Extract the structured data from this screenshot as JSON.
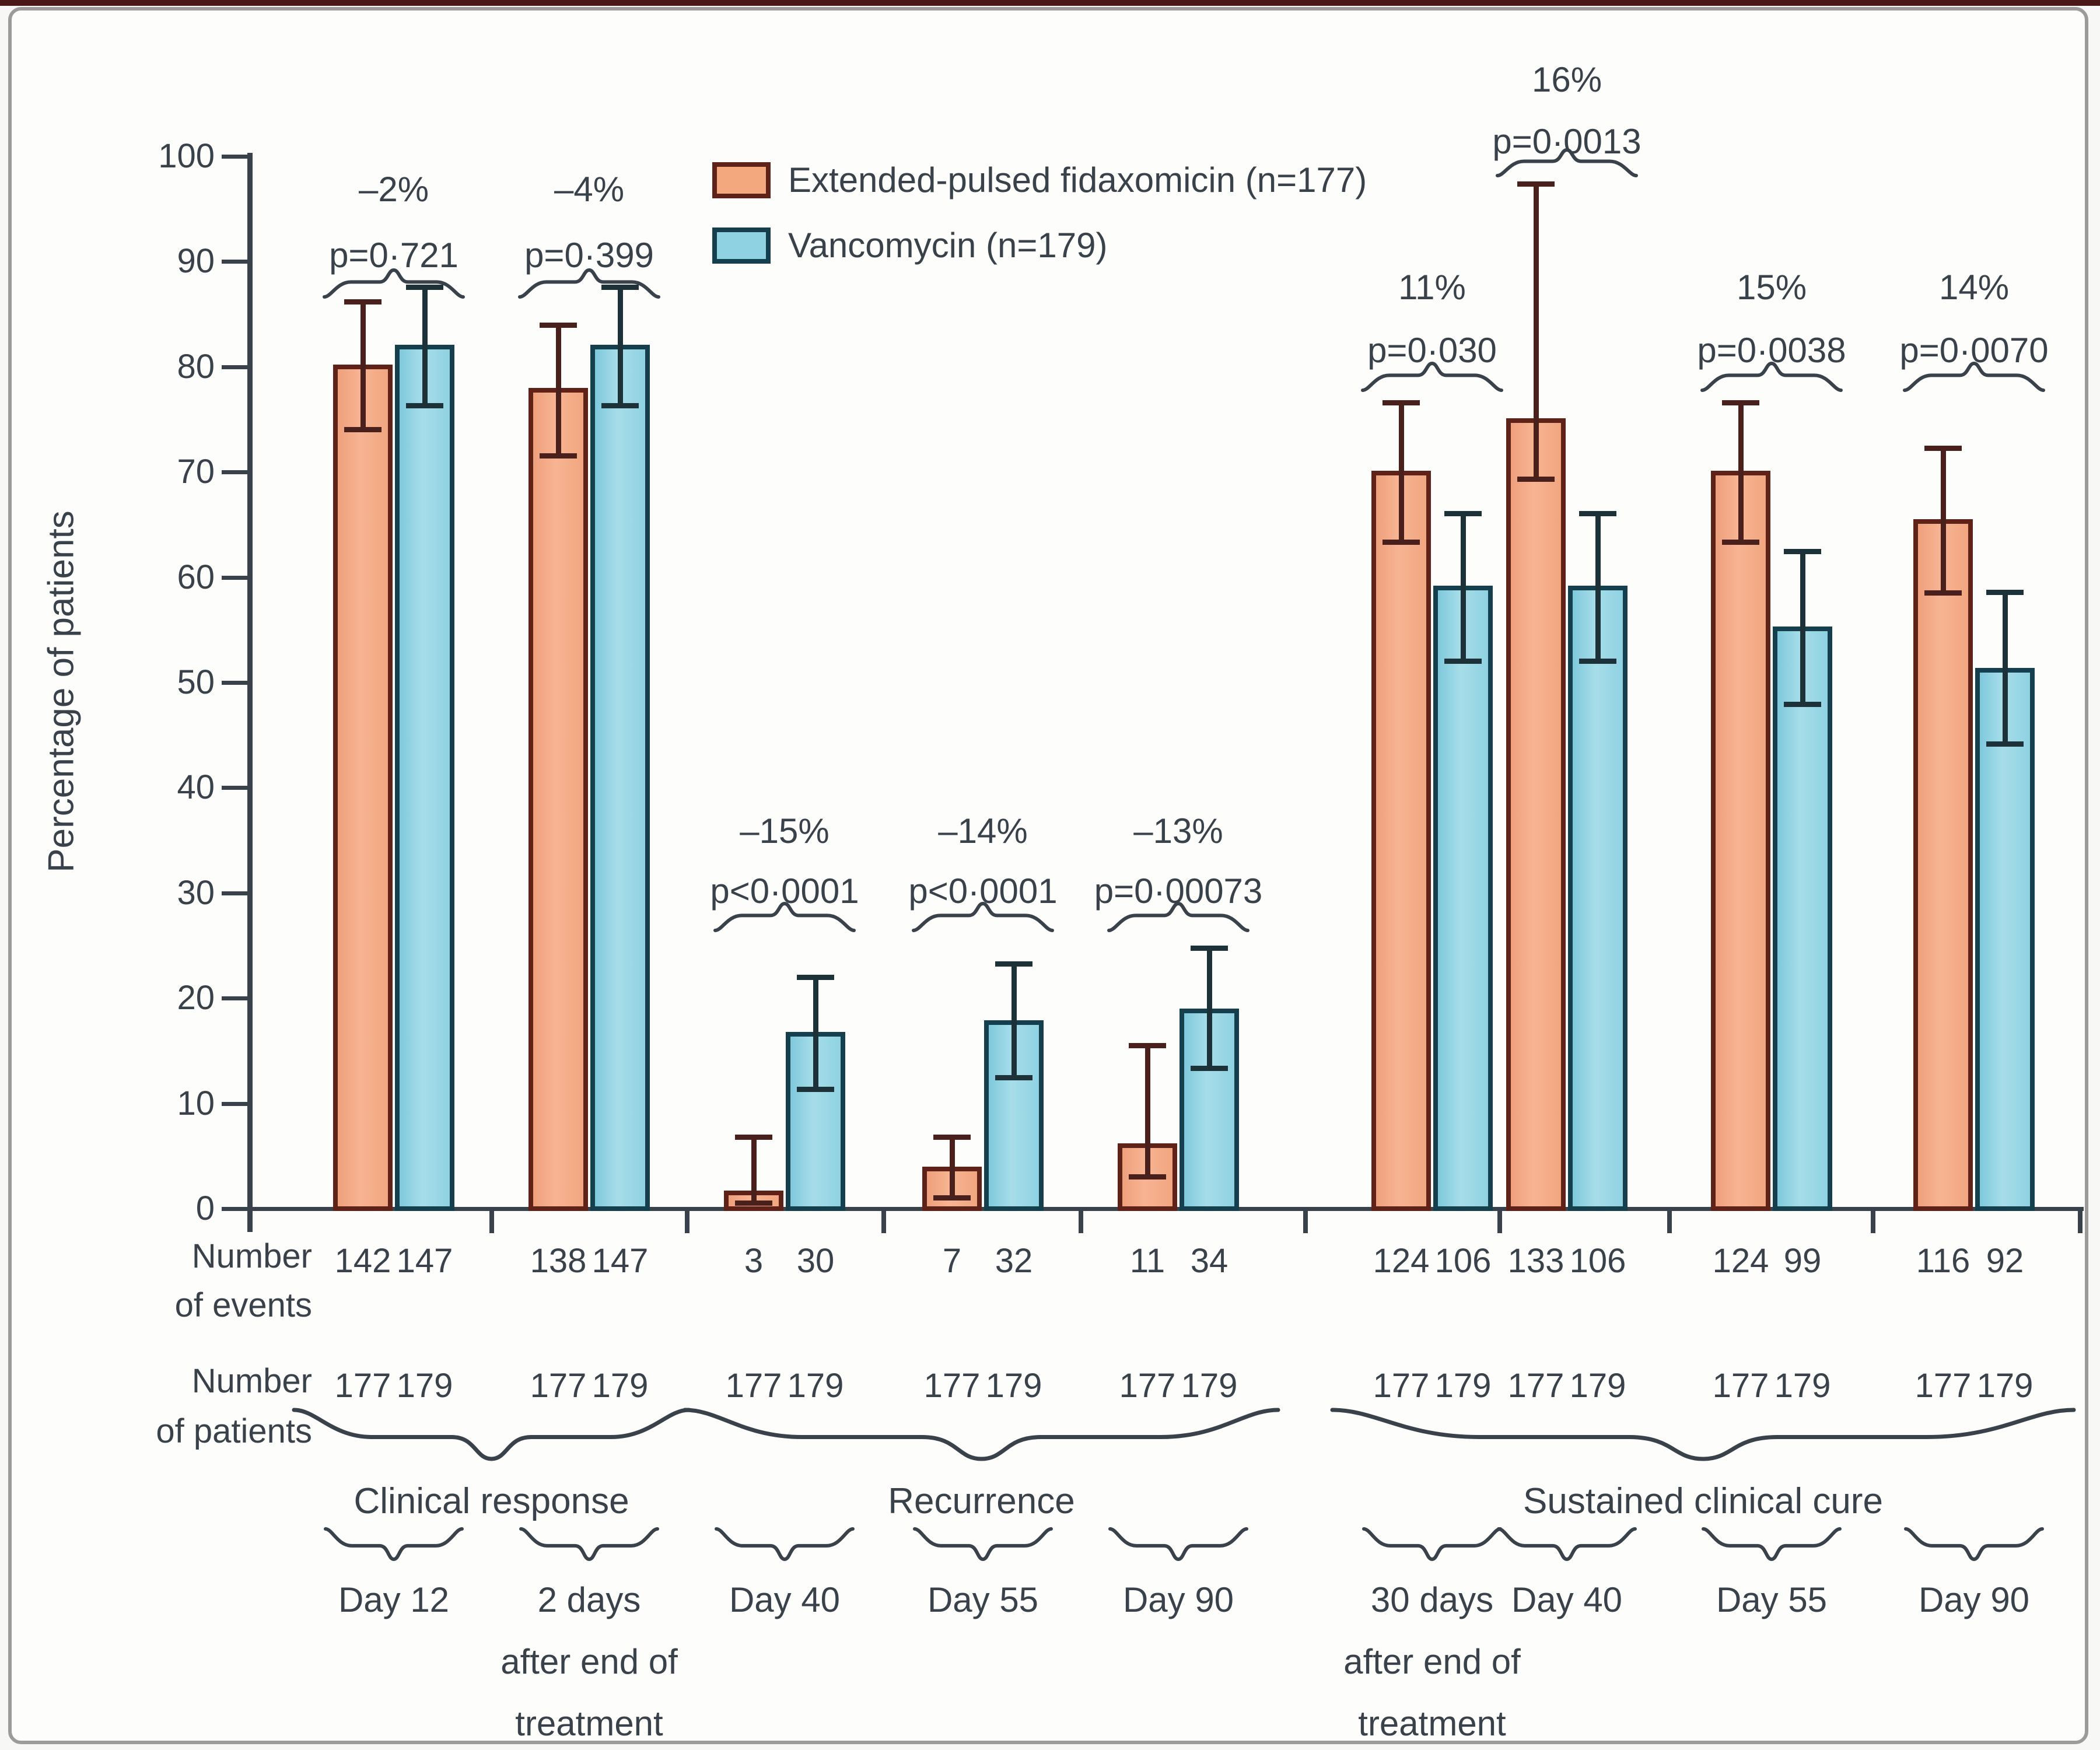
{
  "figure": {
    "colors": {
      "fidaxomicin_fill": "#F4A87E",
      "fidaxomicin_border": "#5E2219",
      "vancomycin_fill": "#8FD2E2",
      "vancomycin_border": "#153F4C",
      "text": "#39424a",
      "frame": "#9b9b9b"
    },
    "y_axis": {
      "title": "Percentage of patients",
      "ticks": [
        "0",
        "10",
        "20",
        "30",
        "40",
        "50",
        "60",
        "70",
        "80",
        "90",
        "100"
      ]
    },
    "legend": {
      "items": [
        {
          "label": "Extended-pulsed fidaxomicin (n=177)",
          "fill": "#F4A87E",
          "border": "#5E2219"
        },
        {
          "label": "Vancomycin (n=179)",
          "fill": "#8FD2E2",
          "border": "#153F4C"
        }
      ]
    },
    "row_labels": {
      "events_line1": "Number",
      "events_line2": "of events",
      "patients_line1": "Number",
      "patients_line2": "of patients"
    },
    "clusters": [
      {
        "label": "Clinical response",
        "group_indexes": [
          0,
          1
        ]
      },
      {
        "label": "Recurrence",
        "group_indexes": [
          2,
          3,
          4
        ]
      },
      {
        "label": "Sustained clinical cure",
        "group_indexes": [
          5,
          6,
          7,
          8
        ]
      }
    ],
    "groups": [
      {
        "day_lines": [
          "Day 12"
        ],
        "diff": "–2%",
        "p_value": "p=0·721",
        "tier": "A",
        "events": [
          "142",
          "147"
        ],
        "patients": [
          "177",
          "179"
        ],
        "fidaxomicin": {
          "value": 80.2,
          "ci_low": 74.0,
          "ci_high": 86.2
        },
        "vancomycin": {
          "value": 82.1,
          "ci_low": 76.3,
          "ci_high": 87.6
        }
      },
      {
        "day_lines": [
          "2 days",
          "after end of",
          "treatment"
        ],
        "diff": "–4%",
        "p_value": "p=0·399",
        "tier": "A",
        "events": [
          "138",
          "147"
        ],
        "patients": [
          "177",
          "179"
        ],
        "fidaxomicin": {
          "value": 78.0,
          "ci_low": 71.5,
          "ci_high": 84.0
        },
        "vancomycin": {
          "value": 82.1,
          "ci_low": 76.3,
          "ci_high": 87.6
        }
      },
      {
        "day_lines": [
          "Day 40"
        ],
        "diff": "–15%",
        "p_value": "p<0·0001",
        "tier": "B",
        "events": [
          "3",
          "30"
        ],
        "patients": [
          "177",
          "179"
        ],
        "fidaxomicin": {
          "value": 1.7,
          "ci_low": 0.5,
          "ci_high": 6.8
        },
        "vancomycin": {
          "value": 16.8,
          "ci_low": 11.3,
          "ci_high": 22.0
        }
      },
      {
        "day_lines": [
          "Day 55"
        ],
        "diff": "–14%",
        "p_value": "p<0·0001",
        "tier": "B",
        "events": [
          "7",
          "32"
        ],
        "patients": [
          "177",
          "179"
        ],
        "fidaxomicin": {
          "value": 4.0,
          "ci_low": 1.0,
          "ci_high": 6.8
        },
        "vancomycin": {
          "value": 17.9,
          "ci_low": 12.4,
          "ci_high": 23.3
        }
      },
      {
        "day_lines": [
          "Day 90"
        ],
        "diff": "–13%",
        "p_value": "p=0·00073",
        "tier": "B",
        "events": [
          "11",
          "34"
        ],
        "patients": [
          "177",
          "179"
        ],
        "fidaxomicin": {
          "value": 6.2,
          "ci_low": 3.0,
          "ci_high": 15.5
        },
        "vancomycin": {
          "value": 19.0,
          "ci_low": 13.3,
          "ci_high": 24.8
        }
      },
      {
        "day_lines": [
          "30 days",
          "after end of",
          "treatment"
        ],
        "diff": "11%",
        "p_value": "p=0·030",
        "tier": "C",
        "events": [
          "124",
          "106"
        ],
        "patients": [
          "177",
          "179"
        ],
        "fidaxomicin": {
          "value": 70.1,
          "ci_low": 63.3,
          "ci_high": 76.6
        },
        "vancomycin": {
          "value": 59.2,
          "ci_low": 52.0,
          "ci_high": 66.1
        }
      },
      {
        "day_lines": [
          "Day 40"
        ],
        "diff": "16%",
        "p_value": "p=0·0013",
        "tier": "D",
        "events": [
          "133",
          "106"
        ],
        "patients": [
          "177",
          "179"
        ],
        "fidaxomicin": {
          "value": 75.1,
          "ci_low": 69.3,
          "ci_high": 97.4
        },
        "vancomycin": {
          "value": 59.2,
          "ci_low": 52.0,
          "ci_high": 66.1
        }
      },
      {
        "day_lines": [
          "Day 55"
        ],
        "diff": "15%",
        "p_value": "p=0·0038",
        "tier": "C",
        "events": [
          "124",
          "99"
        ],
        "patients": [
          "177",
          "179"
        ],
        "fidaxomicin": {
          "value": 70.1,
          "ci_low": 63.3,
          "ci_high": 76.6
        },
        "vancomycin": {
          "value": 55.3,
          "ci_low": 47.9,
          "ci_high": 62.5
        }
      },
      {
        "day_lines": [
          "Day 90"
        ],
        "diff": "14%",
        "p_value": "p=0·0070",
        "tier": "C",
        "events": [
          "116",
          "92"
        ],
        "patients": [
          "177",
          "179"
        ],
        "fidaxomicin": {
          "value": 65.5,
          "ci_low": 58.5,
          "ci_high": 72.3
        },
        "vancomycin": {
          "value": 51.4,
          "ci_low": 44.1,
          "ci_high": 58.6
        }
      }
    ]
  },
  "chart_data": {
    "type": "bar",
    "title": "",
    "xlabel": "",
    "ylabel": "Percentage of patients",
    "ylim": [
      0,
      100
    ],
    "yticks": [
      0,
      10,
      20,
      30,
      40,
      50,
      60,
      70,
      80,
      90,
      100
    ],
    "grid": false,
    "error_bars": true,
    "legend_position": "top-inside",
    "categories": [
      "Clinical response — Day 12",
      "Clinical response — 2 days after end of treatment",
      "Recurrence — Day 40",
      "Recurrence — Day 55",
      "Recurrence — Day 90",
      "Sustained clinical cure — 30 days after end of treatment",
      "Sustained clinical cure — Day 40",
      "Sustained clinical cure — Day 55",
      "Sustained clinical cure — Day 90"
    ],
    "outcome_sections": [
      {
        "label": "Clinical response",
        "timepoints": [
          "Day 12",
          "2 days after end of treatment"
        ]
      },
      {
        "label": "Recurrence",
        "timepoints": [
          "Day 40",
          "Day 55",
          "Day 90"
        ]
      },
      {
        "label": "Sustained clinical cure",
        "timepoints": [
          "30 days after end of treatment",
          "Day 40",
          "Day 55",
          "Day 90"
        ]
      }
    ],
    "series": [
      {
        "name": "Extended-pulsed fidaxomicin (n=177)",
        "color": "#F4A87E",
        "values": [
          80.2,
          78.0,
          1.7,
          4.0,
          6.2,
          70.1,
          75.1,
          70.1,
          65.5
        ],
        "ci_low": [
          74.0,
          71.5,
          0.5,
          1.0,
          3.0,
          63.3,
          69.3,
          63.3,
          58.5
        ],
        "ci_high": [
          86.2,
          84.0,
          6.8,
          6.8,
          15.5,
          76.6,
          97.4,
          76.6,
          72.3
        ],
        "number_of_events": [
          142,
          138,
          3,
          7,
          11,
          124,
          133,
          124,
          116
        ],
        "number_of_patients": [
          177,
          177,
          177,
          177,
          177,
          177,
          177,
          177,
          177
        ]
      },
      {
        "name": "Vancomycin (n=179)",
        "color": "#8FD2E2",
        "values": [
          82.1,
          82.1,
          16.8,
          17.9,
          19.0,
          59.2,
          59.2,
          55.3,
          51.4
        ],
        "ci_low": [
          76.3,
          76.3,
          11.3,
          12.4,
          13.3,
          52.0,
          52.0,
          47.9,
          44.1
        ],
        "ci_high": [
          87.6,
          87.6,
          22.0,
          23.3,
          24.8,
          66.1,
          66.1,
          62.5,
          58.6
        ],
        "number_of_events": [
          147,
          147,
          30,
          32,
          34,
          106,
          106,
          99,
          92
        ],
        "number_of_patients": [
          179,
          179,
          179,
          179,
          179,
          179,
          179,
          179,
          179
        ]
      }
    ],
    "comparisons": [
      {
        "difference": "–2%",
        "p": "p=0·721"
      },
      {
        "difference": "–4%",
        "p": "p=0·399"
      },
      {
        "difference": "–15%",
        "p": "p<0·0001"
      },
      {
        "difference": "–14%",
        "p": "p<0·0001"
      },
      {
        "difference": "–13%",
        "p": "p=0·00073"
      },
      {
        "difference": "11%",
        "p": "p=0·030"
      },
      {
        "difference": "16%",
        "p": "p=0·0013"
      },
      {
        "difference": "15%",
        "p": "p=0·0038"
      },
      {
        "difference": "14%",
        "p": "p=0·0070"
      }
    ]
  }
}
